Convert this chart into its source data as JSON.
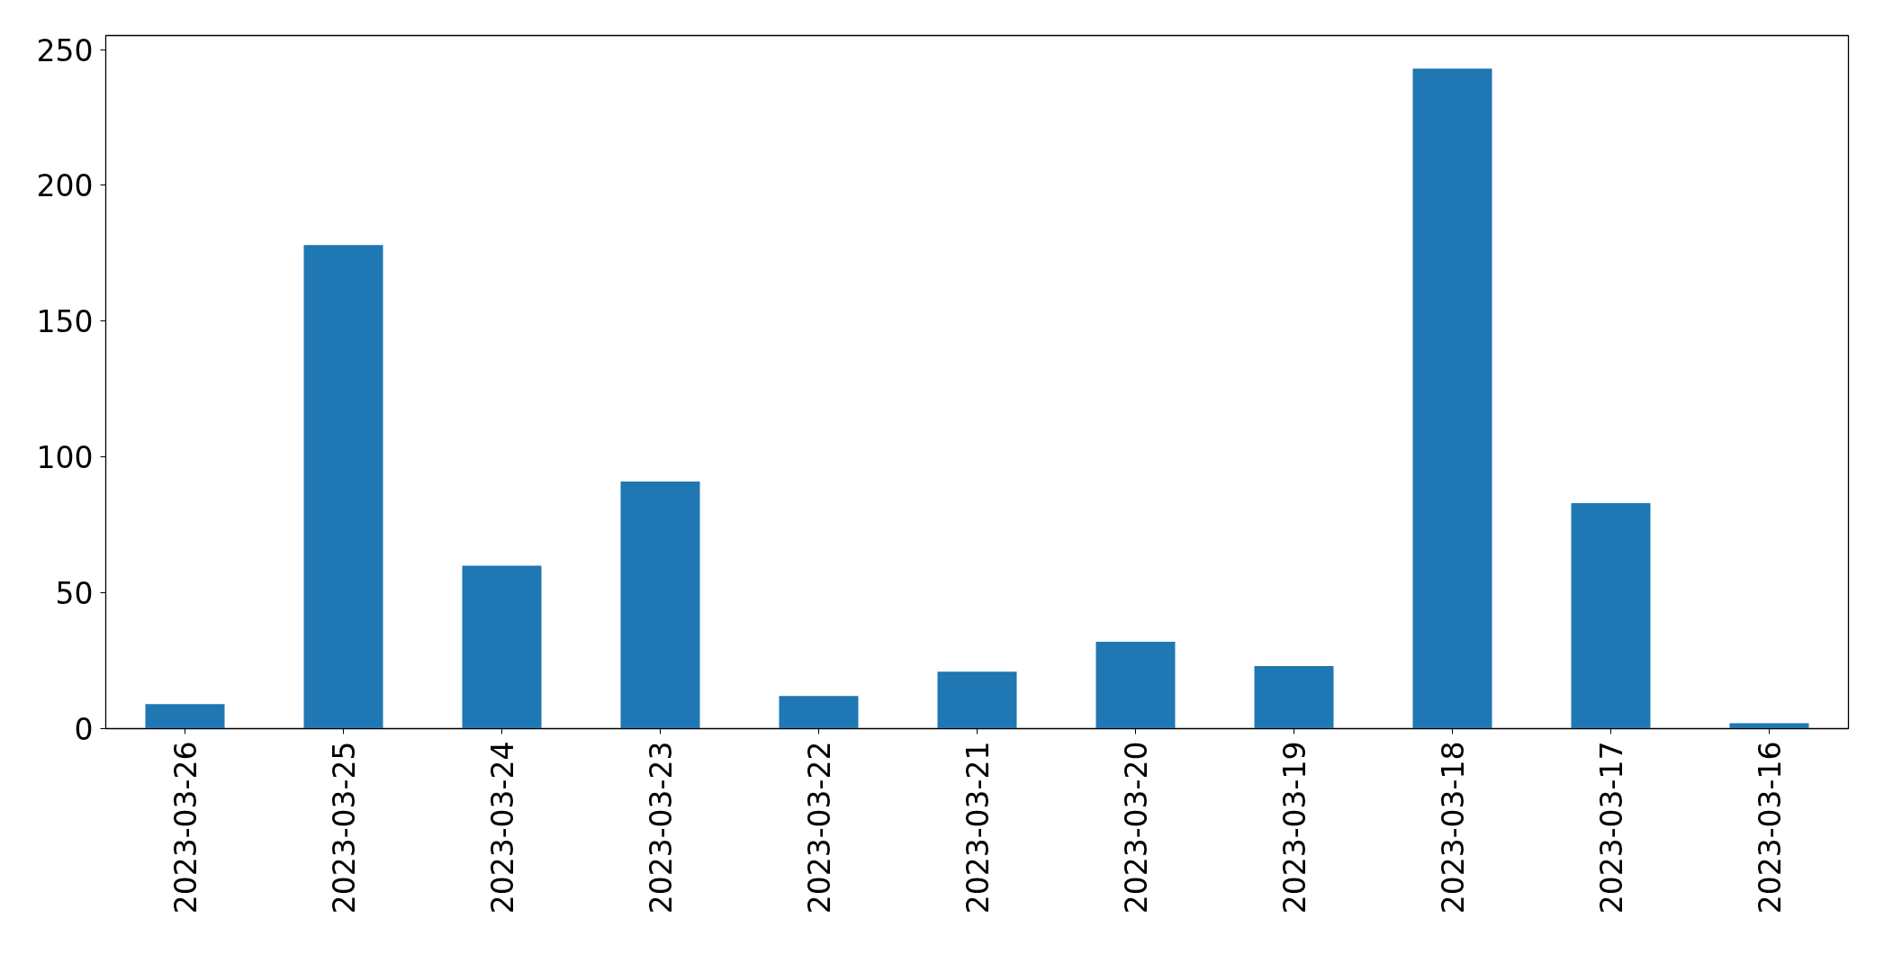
{
  "chart_data": {
    "type": "bar",
    "categories": [
      "2023-03-26",
      "2023-03-25",
      "2023-03-24",
      "2023-03-23",
      "2023-03-22",
      "2023-03-21",
      "2023-03-20",
      "2023-03-19",
      "2023-03-18",
      "2023-03-17",
      "2023-03-16"
    ],
    "values": [
      9,
      178,
      60,
      91,
      12,
      21,
      32,
      23,
      243,
      83,
      2
    ],
    "color": "#1f77b4",
    "ylim": [
      0,
      255.15
    ],
    "yticks": [
      0,
      50,
      100,
      150,
      200,
      250
    ]
  }
}
